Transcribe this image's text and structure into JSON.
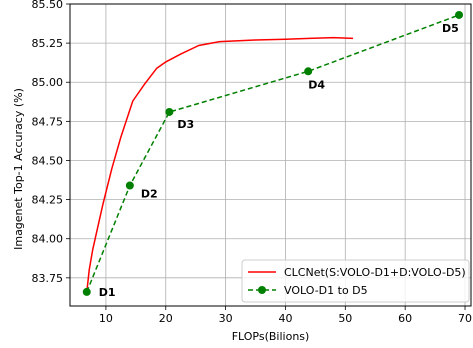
{
  "chart_data": {
    "type": "line",
    "title": "",
    "xlabel": "FLOPs(Bilions)",
    "ylabel": "Imagenet Top-1 Accuracy (%)",
    "xlim": [
      4,
      71
    ],
    "ylim": [
      83.57,
      85.5
    ],
    "x_ticks": [
      10,
      20,
      30,
      40,
      50,
      60,
      70
    ],
    "y_ticks": [
      83.75,
      84.0,
      84.25,
      84.5,
      84.75,
      85.0,
      85.25,
      85.5
    ],
    "grid": true,
    "legend_position": "lower right",
    "series": [
      {
        "name": "CLCNet(S:VOLO-D1+D:VOLO-D5)",
        "color": "#ff0000",
        "style": "solid",
        "marker": "none",
        "x": [
          6.8,
          7.2,
          7.8,
          8.5,
          9.5,
          11.0,
          12.5,
          14.5,
          16.5,
          18.5,
          20.0,
          22.5,
          25.5,
          29.0,
          35.0,
          40.0,
          44.0,
          48.0,
          51.3
        ],
        "y": [
          83.66,
          83.8,
          83.93,
          84.05,
          84.22,
          84.45,
          84.65,
          84.88,
          84.99,
          85.09,
          85.13,
          85.18,
          85.235,
          85.26,
          85.27,
          85.275,
          85.28,
          85.285,
          85.28
        ]
      },
      {
        "name": "VOLO-D1 to D5",
        "color": "#008000",
        "style": "dashed",
        "marker": "circle",
        "x": [
          6.8,
          14.0,
          20.6,
          43.8,
          69.0
        ],
        "y": [
          83.66,
          84.34,
          84.81,
          85.07,
          85.43
        ],
        "point_labels": [
          "D1",
          "D2",
          "D3",
          "D4",
          "D5"
        ]
      }
    ]
  }
}
